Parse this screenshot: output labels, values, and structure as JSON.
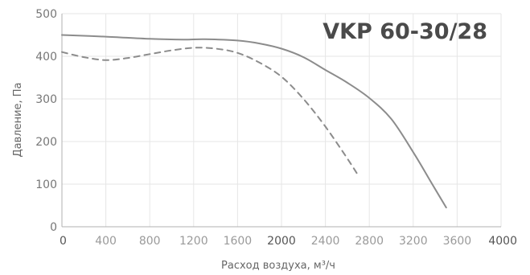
{
  "chart_data": {
    "type": "line",
    "title": "VKP 60-30/28",
    "xlabel": "Расход воздуха, м³/ч",
    "ylabel": "Давление, Па",
    "xlim": [
      0,
      4000
    ],
    "ylim": [
      0,
      500
    ],
    "x_ticks": [
      0,
      400,
      800,
      1200,
      1600,
      2000,
      2400,
      2800,
      3200,
      3600,
      4000
    ],
    "x_tick_labels": [
      "0",
      "400",
      "800",
      "1200",
      "1600",
      "2000",
      "2400",
      "2800",
      "3200",
      "3600",
      "4000"
    ],
    "y_ticks": [
      0,
      100,
      200,
      300,
      400,
      500
    ],
    "y_tick_labels": [
      "0",
      "100",
      "200",
      "300",
      "400",
      "500"
    ],
    "grid": true,
    "series": [
      {
        "style": "solid",
        "color": "#8c8c8c",
        "x": [
          0,
          400,
          800,
          1100,
          1300,
          1600,
          1800,
          2000,
          2200,
          2400,
          2600,
          2800,
          3000,
          3200,
          3350,
          3500
        ],
        "y": [
          450,
          446,
          441,
          439,
          440,
          437,
          430,
          418,
          398,
          368,
          338,
          302,
          253,
          175,
          110,
          45
        ]
      },
      {
        "style": "dashed",
        "color": "#8c8c8c",
        "x": [
          0,
          200,
          400,
          600,
          800,
          1000,
          1200,
          1400,
          1600,
          1800,
          2000,
          2200,
          2400,
          2600,
          2700
        ],
        "y": [
          410,
          398,
          391,
          396,
          405,
          414,
          420,
          418,
          408,
          385,
          352,
          300,
          235,
          160,
          120
        ]
      }
    ]
  }
}
